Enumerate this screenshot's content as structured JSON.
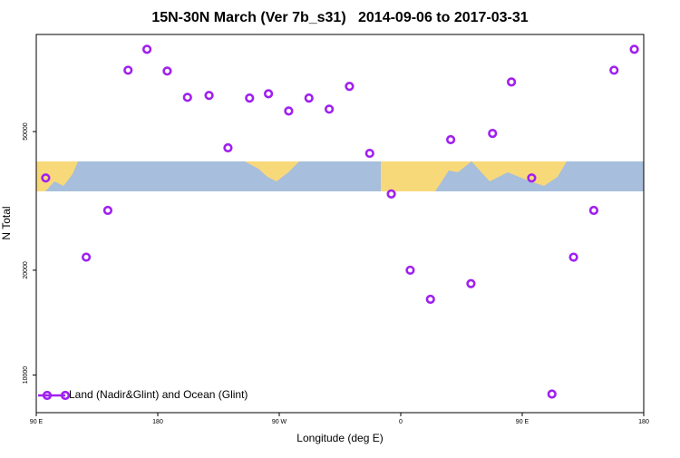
{
  "chart_data": {
    "type": "scatter",
    "title": "15N-30N March (Ver 7b_s31)   2014-09-06 to 2017-03-31",
    "x_label": "Longitude (deg E)",
    "y_label": "N Total",
    "xlim": [
      90,
      540
    ],
    "xticks": [
      {
        "value": 90,
        "label": "90 E"
      },
      180,
      {
        "value": 270,
        "label": "90 W"
      },
      {
        "value": 360,
        "label": "0"
      },
      {
        "value": 450,
        "label": "90 E"
      },
      {
        "value": 540,
        "label": "180"
      }
    ],
    "ylim": [
      7800,
      95000
    ],
    "ylog": true,
    "yticks": [
      10000,
      20000,
      50000
    ],
    "legend": "bottom-left",
    "series": [
      {
        "name": "Land (Nadir&Glint) and Ocean (Glint)",
        "color": "#a020f0",
        "x": [
          97,
          127,
          143,
          158,
          172,
          187,
          202,
          218,
          232,
          248,
          262,
          277,
          292,
          307,
          322,
          337,
          353,
          367,
          382,
          397,
          412,
          428,
          442,
          457,
          472,
          488,
          503,
          518,
          533
        ],
        "values": [
          36800,
          21800,
          29700,
          75000,
          86100,
          74600,
          62700,
          63500,
          44900,
          62400,
          64200,
          57300,
          62400,
          58000,
          67400,
          43300,
          33100,
          20000,
          16500,
          47400,
          18300,
          49400,
          69400,
          36800,
          8820,
          21800,
          29700,
          75000,
          86100
        ]
      }
    ]
  }
}
